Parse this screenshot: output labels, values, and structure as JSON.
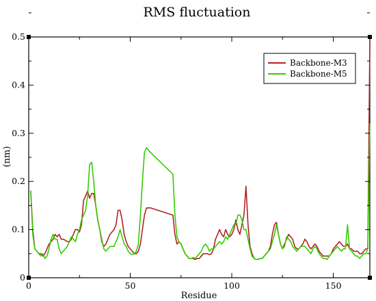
{
  "chart_data": {
    "type": "line",
    "title": "RMS fluctuation",
    "xlabel": "Residue",
    "ylabel": "(nm)",
    "xlim": [
      0,
      168
    ],
    "ylim": [
      0,
      0.5
    ],
    "xticks": [
      0,
      50,
      100,
      150
    ],
    "yticks": [
      0,
      0.1,
      0.2,
      0.3,
      0.4,
      0.5
    ],
    "yticklabels": [
      "0",
      "0.1",
      "0.2",
      "0.3",
      "0.4",
      "0.5"
    ],
    "grid": false,
    "legend_position": "top-right",
    "series": [
      {
        "name": "Backbone-M3",
        "color": "#b22222",
        "x": [
          1,
          2,
          3,
          4,
          5,
          6,
          7,
          8,
          9,
          10,
          11,
          12,
          13,
          14,
          15,
          16,
          17,
          18,
          19,
          20,
          21,
          22,
          23,
          24,
          25,
          26,
          27,
          28,
          29,
          30,
          31,
          32,
          33,
          34,
          35,
          36,
          37,
          38,
          39,
          40,
          41,
          42,
          43,
          44,
          45,
          46,
          47,
          48,
          49,
          50,
          51,
          52,
          53,
          54,
          55,
          56,
          57,
          58,
          59,
          60,
          71,
          72,
          73,
          74,
          75,
          76,
          77,
          78,
          79,
          80,
          81,
          82,
          83,
          84,
          85,
          86,
          87,
          88,
          89,
          90,
          91,
          92,
          93,
          94,
          95,
          96,
          97,
          98,
          99,
          100,
          101,
          102,
          103,
          104,
          105,
          106,
          107,
          108,
          109,
          110,
          111,
          112,
          113,
          114,
          115,
          116,
          117,
          118,
          119,
          120,
          121,
          122,
          123,
          124,
          125,
          126,
          127,
          128,
          129,
          130,
          131,
          132,
          133,
          134,
          135,
          136,
          137,
          138,
          139,
          140,
          141,
          142,
          143,
          144,
          145,
          146,
          147,
          148,
          149,
          150,
          151,
          152,
          153,
          154,
          155,
          156,
          157,
          158,
          159,
          160,
          161,
          162,
          163,
          164,
          165,
          166,
          167,
          168
        ],
        "values": [
          0.18,
          0.1,
          0.06,
          0.055,
          0.05,
          0.05,
          0.045,
          0.05,
          0.06,
          0.07,
          0.075,
          0.08,
          0.09,
          0.085,
          0.09,
          0.08,
          0.08,
          0.078,
          0.075,
          0.075,
          0.08,
          0.09,
          0.1,
          0.1,
          0.095,
          0.11,
          0.16,
          0.17,
          0.18,
          0.165,
          0.175,
          0.175,
          0.15,
          0.12,
          0.1,
          0.075,
          0.065,
          0.07,
          0.08,
          0.09,
          0.095,
          0.1,
          0.11,
          0.14,
          0.14,
          0.12,
          0.09,
          0.075,
          0.065,
          0.06,
          0.055,
          0.05,
          0.05,
          0.055,
          0.07,
          0.1,
          0.13,
          0.145,
          0.145,
          0.145,
          0.13,
          0.09,
          0.07,
          0.075,
          0.07,
          0.06,
          0.05,
          0.045,
          0.04,
          0.04,
          0.04,
          0.038,
          0.04,
          0.04,
          0.045,
          0.05,
          0.05,
          0.05,
          0.048,
          0.05,
          0.06,
          0.08,
          0.09,
          0.1,
          0.09,
          0.085,
          0.1,
          0.09,
          0.085,
          0.09,
          0.1,
          0.12,
          0.1,
          0.09,
          0.11,
          0.13,
          0.19,
          0.11,
          0.065,
          0.05,
          0.04,
          0.038,
          0.038,
          0.04,
          0.04,
          0.045,
          0.05,
          0.055,
          0.065,
          0.09,
          0.11,
          0.115,
          0.09,
          0.07,
          0.06,
          0.07,
          0.08,
          0.09,
          0.085,
          0.08,
          0.065,
          0.06,
          0.06,
          0.065,
          0.07,
          0.08,
          0.075,
          0.065,
          0.06,
          0.065,
          0.07,
          0.065,
          0.055,
          0.05,
          0.045,
          0.045,
          0.045,
          0.045,
          0.05,
          0.06,
          0.065,
          0.07,
          0.075,
          0.07,
          0.065,
          0.065,
          0.07,
          0.06,
          0.06,
          0.055,
          0.055,
          0.055,
          0.05,
          0.05,
          0.055,
          0.06,
          0.06,
          0.49
        ]
      },
      {
        "name": "Backbone-M5",
        "color": "#33cc00",
        "x": [
          1,
          2,
          3,
          4,
          5,
          6,
          7,
          8,
          9,
          10,
          11,
          12,
          13,
          14,
          15,
          16,
          17,
          18,
          19,
          20,
          21,
          22,
          23,
          24,
          25,
          26,
          27,
          28,
          29,
          30,
          31,
          32,
          33,
          34,
          35,
          36,
          37,
          38,
          39,
          40,
          41,
          42,
          43,
          44,
          45,
          46,
          47,
          48,
          49,
          50,
          51,
          52,
          53,
          54,
          55,
          56,
          57,
          58,
          59,
          60,
          71,
          72,
          73,
          74,
          75,
          76,
          77,
          78,
          79,
          80,
          81,
          82,
          83,
          84,
          85,
          86,
          87,
          88,
          89,
          90,
          91,
          92,
          93,
          94,
          95,
          96,
          97,
          98,
          99,
          100,
          101,
          102,
          103,
          104,
          105,
          106,
          107,
          108,
          109,
          110,
          111,
          112,
          113,
          114,
          115,
          116,
          117,
          118,
          119,
          120,
          121,
          122,
          123,
          124,
          125,
          126,
          127,
          128,
          129,
          130,
          131,
          132,
          133,
          134,
          135,
          136,
          137,
          138,
          139,
          140,
          141,
          142,
          143,
          144,
          145,
          146,
          147,
          148,
          149,
          150,
          151,
          152,
          153,
          154,
          155,
          156,
          157,
          158,
          159,
          160,
          161,
          162,
          163,
          164,
          165,
          166,
          167,
          168
        ],
        "values": [
          0.18,
          0.09,
          0.06,
          0.055,
          0.05,
          0.045,
          0.05,
          0.04,
          0.045,
          0.06,
          0.08,
          0.09,
          0.08,
          0.08,
          0.06,
          0.05,
          0.055,
          0.06,
          0.065,
          0.075,
          0.085,
          0.08,
          0.075,
          0.09,
          0.1,
          0.12,
          0.13,
          0.14,
          0.17,
          0.235,
          0.24,
          0.2,
          0.15,
          0.12,
          0.1,
          0.08,
          0.06,
          0.055,
          0.06,
          0.065,
          0.065,
          0.065,
          0.075,
          0.085,
          0.1,
          0.085,
          0.07,
          0.065,
          0.055,
          0.05,
          0.048,
          0.05,
          0.055,
          0.07,
          0.13,
          0.2,
          0.26,
          0.27,
          0.265,
          0.26,
          0.215,
          0.13,
          0.085,
          0.075,
          0.07,
          0.06,
          0.05,
          0.045,
          0.04,
          0.04,
          0.042,
          0.04,
          0.045,
          0.05,
          0.055,
          0.065,
          0.07,
          0.065,
          0.055,
          0.06,
          0.06,
          0.065,
          0.07,
          0.075,
          0.07,
          0.075,
          0.085,
          0.08,
          0.09,
          0.1,
          0.11,
          0.11,
          0.13,
          0.13,
          0.12,
          0.1,
          0.1,
          0.08,
          0.06,
          0.045,
          0.04,
          0.038,
          0.038,
          0.04,
          0.04,
          0.045,
          0.05,
          0.055,
          0.06,
          0.075,
          0.09,
          0.11,
          0.09,
          0.07,
          0.06,
          0.065,
          0.085,
          0.08,
          0.075,
          0.065,
          0.06,
          0.055,
          0.06,
          0.065,
          0.065,
          0.065,
          0.06,
          0.055,
          0.05,
          0.06,
          0.065,
          0.06,
          0.05,
          0.045,
          0.04,
          0.04,
          0.038,
          0.045,
          0.05,
          0.055,
          0.06,
          0.065,
          0.06,
          0.055,
          0.06,
          0.06,
          0.11,
          0.06,
          0.055,
          0.05,
          0.045,
          0.045,
          0.04,
          0.045,
          0.05,
          0.05,
          0.06,
          0.32
        ]
      }
    ]
  }
}
